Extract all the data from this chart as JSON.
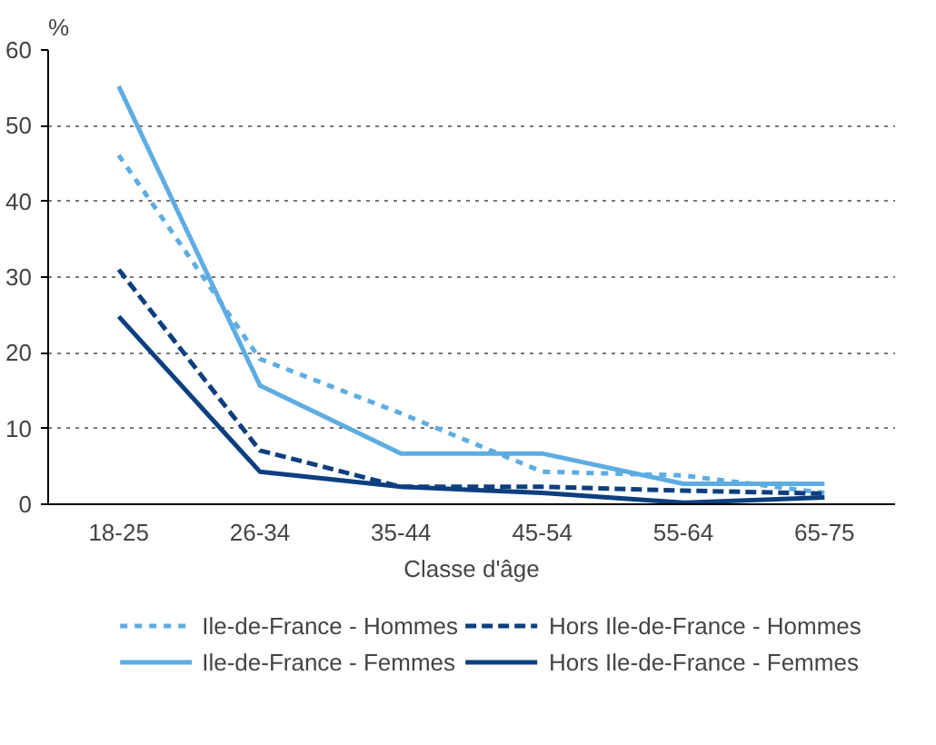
{
  "chart_data": {
    "type": "line",
    "ylabel": "%",
    "xlabel": "Classe d'âge",
    "categories": [
      "18-25",
      "26-34",
      "35-44",
      "45-54",
      "55-64",
      "65-75"
    ],
    "series": [
      {
        "name": "Ile-de-France - Hommes",
        "color": "#5dade2",
        "line_style": "dotted",
        "values": [
          46.1,
          19.2,
          12,
          4.3,
          3.8,
          1.5
        ]
      },
      {
        "name": "Ile-de-France - Femmes",
        "color": "#5dade2",
        "line_style": "solid",
        "values": [
          55.2,
          15.7,
          6.7,
          6.7,
          2.7,
          2.7
        ]
      },
      {
        "name": "Hors Ile-de-France - Hommes",
        "color": "#0d3f7f",
        "line_style": "dashed",
        "values": [
          31,
          7.1,
          2.3,
          2.3,
          1.8,
          1.4
        ]
      },
      {
        "name": "Hors Ile-de-France - Femmes",
        "color": "#0d3f7f",
        "line_style": "solid",
        "values": [
          24.8,
          4.3,
          2.3,
          1.5,
          0.2,
          0.9
        ]
      }
    ],
    "ylim": [
      0,
      60
    ],
    "yticks": [
      0,
      10,
      20,
      30,
      40,
      50,
      60
    ],
    "grid": "y",
    "legend": "bottom",
    "marker": "none"
  }
}
